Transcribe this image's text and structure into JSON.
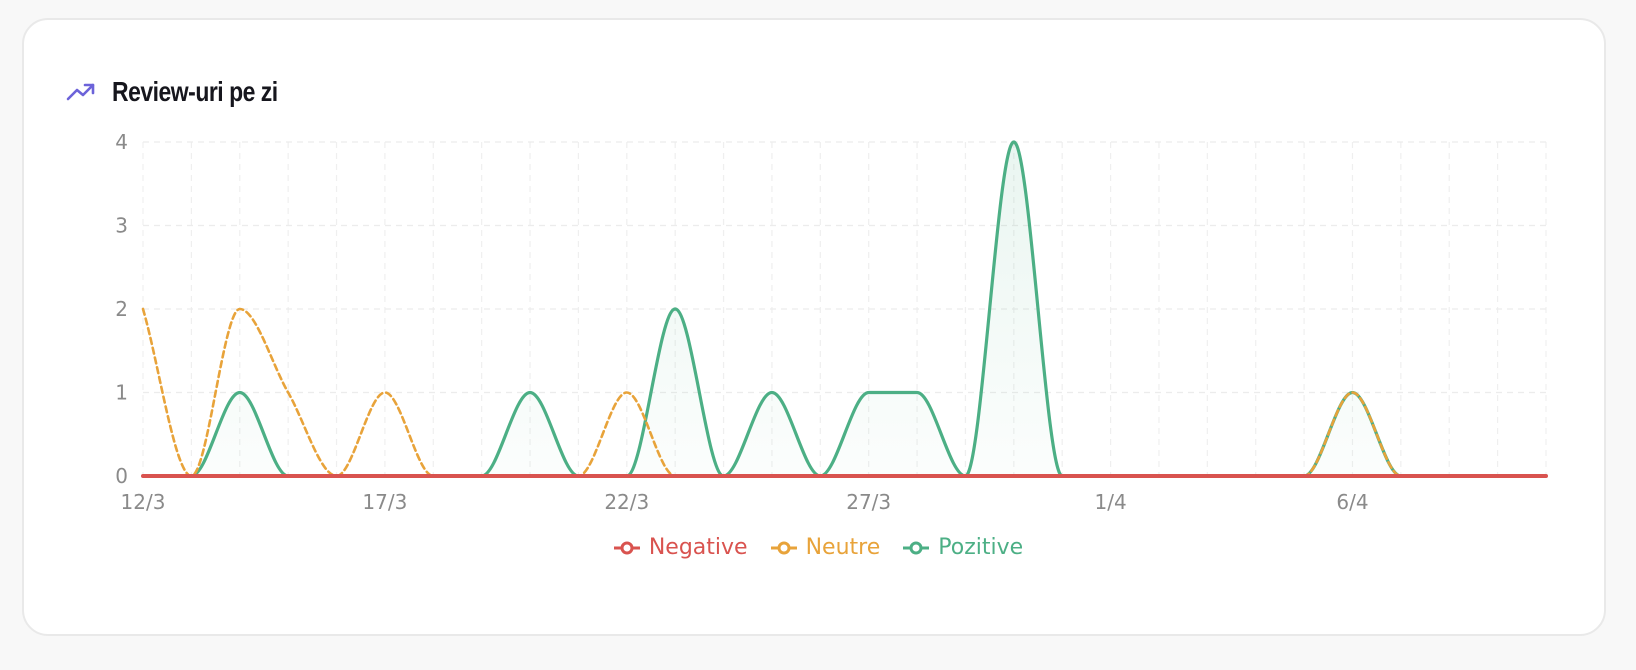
{
  "card": {
    "title": "Review-uri pe zi",
    "icon": "trending-up-icon"
  },
  "chart_data": {
    "type": "line",
    "x": [
      "12/3",
      "13/3",
      "14/3",
      "15/3",
      "16/3",
      "17/3",
      "18/3",
      "19/3",
      "20/3",
      "21/3",
      "22/3",
      "23/3",
      "24/3",
      "25/3",
      "26/3",
      "27/3",
      "28/3",
      "29/3",
      "30/3",
      "31/3",
      "1/4",
      "2/4",
      "3/4",
      "4/4",
      "5/4",
      "6/4",
      "7/4",
      "8/4",
      "9/4",
      "10/4"
    ],
    "xticks": [
      "12/3",
      "17/3",
      "22/3",
      "27/3",
      "1/4",
      "6/4"
    ],
    "ylim": [
      0,
      4
    ],
    "yticks": [
      0,
      1,
      2,
      3,
      4
    ],
    "grid": true,
    "legend_position": "bottom",
    "series": [
      {
        "name": "Negative",
        "color": "#d9534f",
        "style": "solid",
        "values": [
          0,
          0,
          0,
          0,
          0,
          0,
          0,
          0,
          0,
          0,
          0,
          0,
          0,
          0,
          0,
          0,
          0,
          0,
          0,
          0,
          0,
          0,
          0,
          0,
          0,
          0,
          0,
          0,
          0,
          0
        ]
      },
      {
        "name": "Neutre",
        "color": "#e8a33a",
        "style": "dashed",
        "values": [
          2,
          0,
          2,
          1,
          0,
          1,
          0,
          0,
          0,
          0,
          1,
          0,
          0,
          0,
          0,
          0,
          0,
          0,
          0,
          0,
          0,
          0,
          0,
          0,
          0,
          1,
          0,
          0,
          0,
          0
        ]
      },
      {
        "name": "Pozitive",
        "color": "#4caf85",
        "style": "solid",
        "fill": true,
        "values": [
          0,
          0,
          1,
          0,
          0,
          0,
          0,
          0,
          1,
          0,
          0,
          2,
          0,
          1,
          0,
          1,
          1,
          0,
          4,
          0,
          0,
          0,
          0,
          0,
          0,
          1,
          0,
          0,
          0,
          0
        ]
      }
    ]
  }
}
